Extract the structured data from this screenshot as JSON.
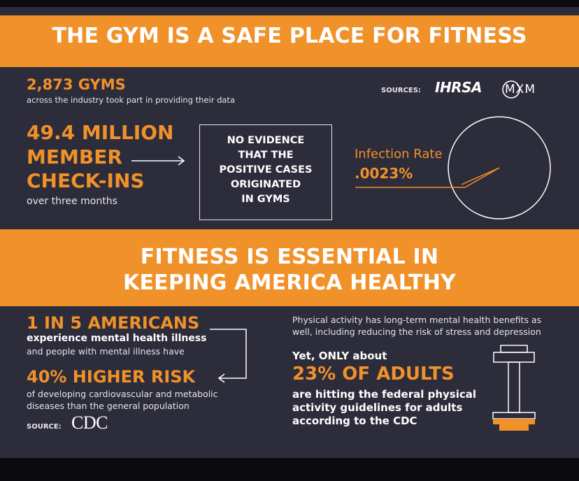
{
  "section1": {
    "title": "THE GYM IS A SAFE PLACE FOR FITNESS",
    "gyms_count": "2,873 GYMS",
    "gyms_desc": "across the industry took part in providing their data",
    "sources_label": "SOURCES:",
    "source_logo_1": "IHRSA",
    "source_logo_2": "MXM",
    "checkins_line1": "49.4 MILLION",
    "checkins_line2": "MEMBER",
    "checkins_line3": "CHECK-INS",
    "checkins_desc": "over three months",
    "evidence_lines": [
      "NO EVIDENCE",
      "THAT THE",
      "POSITIVE CASES",
      "ORIGINATED",
      "IN GYMS"
    ],
    "infection_label": "Infection Rate",
    "infection_value": ".0023%"
  },
  "section2": {
    "title_line1": "FITNESS IS ESSENTIAL IN",
    "title_line2": "KEEPING AMERICA HEALTHY",
    "americans_stat": "1 IN 5 AMERICANS",
    "americans_desc1": "experience mental health illness",
    "americans_desc2": "and people with mental illness have",
    "risk_stat": "40% HIGHER RISK",
    "risk_desc1": "of developing cardiovascular and metabolic",
    "risk_desc2": "diseases than the general population",
    "source_label": "SOURCE:",
    "source_logo": "CDC",
    "mental_line1": "Physical activity has long-term mental health benefits as",
    "mental_line2": "well, including reducing the risk of stress and depression",
    "yet_only": "Yet, ONLY about",
    "adults_stat": "23% OF ADULTS",
    "adults_desc1": "are hitting the federal physical",
    "adults_desc2": "activity guidelines for adults",
    "adults_desc3": "according to the CDC"
  },
  "colors": {
    "accent": "#f0912a",
    "panel": "#2c2c3a",
    "text": "#ffffff"
  },
  "icons": [
    "arrow-right-icon",
    "pie-chart-icon",
    "bracket-arrow-icon",
    "dumbbell-icon"
  ]
}
